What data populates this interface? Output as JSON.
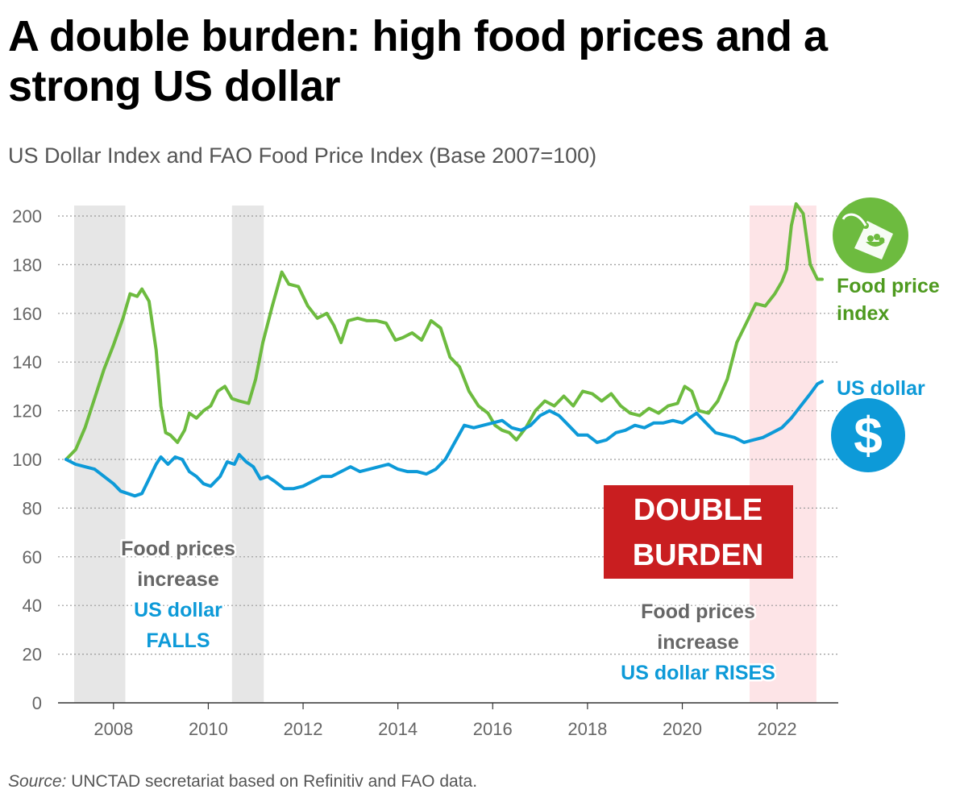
{
  "header": {
    "title": "A double burden: high food prices and a strong US dollar",
    "subtitle": "US Dollar Index and FAO Food Price Index (Base 2007=100)"
  },
  "footer": {
    "source_label": "Source:",
    "source_text": " UNCTAD secretariat based on Refinitiv and FAO data."
  },
  "colors": {
    "food": "#6dbb3f",
    "dollar": "#0d9ad8",
    "burden": "#c91e20",
    "gray_band": "#e6e6e6",
    "pink_band": "#fde4e7",
    "annotation_gray": "#666666"
  },
  "icons": {
    "food": "food-price-tag-icon",
    "dollar": "dollar-coin-icon"
  },
  "chart_data": {
    "type": "line",
    "title": "A double burden: high food prices and a strong US dollar",
    "subtitle": "US Dollar Index and FAO Food Price Index (Base 2007=100)",
    "xlabel": "",
    "ylabel": "",
    "xlim": [
      2007,
      2023
    ],
    "ylim": [
      0,
      205
    ],
    "yticks": [
      0,
      20,
      40,
      60,
      80,
      100,
      120,
      140,
      160,
      180,
      200
    ],
    "xticks": [
      2008,
      2010,
      2012,
      2014,
      2016,
      2018,
      2020,
      2022
    ],
    "grid": "horizontal-dotted",
    "shaded_periods": [
      {
        "from": 2007.17,
        "to": 2008.25,
        "style": "gray"
      },
      {
        "from": 2010.5,
        "to": 2011.17,
        "style": "gray"
      },
      {
        "from": 2021.42,
        "to": 2022.83,
        "style": "pink"
      }
    ],
    "series": [
      {
        "name": "Food price index",
        "label_lines": [
          "Food price",
          "index"
        ],
        "color": "#6dbb3f",
        "points": [
          [
            2007.0,
            100
          ],
          [
            2007.2,
            104
          ],
          [
            2007.4,
            113
          ],
          [
            2007.6,
            125
          ],
          [
            2007.8,
            137
          ],
          [
            2008.0,
            147
          ],
          [
            2008.2,
            158
          ],
          [
            2008.35,
            168
          ],
          [
            2008.5,
            167
          ],
          [
            2008.6,
            170
          ],
          [
            2008.75,
            165
          ],
          [
            2008.9,
            145
          ],
          [
            2009.0,
            122
          ],
          [
            2009.1,
            111
          ],
          [
            2009.2,
            110
          ],
          [
            2009.35,
            107
          ],
          [
            2009.5,
            112
          ],
          [
            2009.6,
            119
          ],
          [
            2009.75,
            117
          ],
          [
            2009.9,
            120
          ],
          [
            2010.05,
            122
          ],
          [
            2010.2,
            128
          ],
          [
            2010.35,
            130
          ],
          [
            2010.5,
            125
          ],
          [
            2010.65,
            124
          ],
          [
            2010.85,
            123
          ],
          [
            2011.0,
            133
          ],
          [
            2011.15,
            148
          ],
          [
            2011.35,
            163
          ],
          [
            2011.55,
            177
          ],
          [
            2011.7,
            172
          ],
          [
            2011.9,
            171
          ],
          [
            2012.1,
            163
          ],
          [
            2012.3,
            158
          ],
          [
            2012.5,
            160
          ],
          [
            2012.65,
            155
          ],
          [
            2012.8,
            148
          ],
          [
            2012.95,
            157
          ],
          [
            2013.15,
            158
          ],
          [
            2013.35,
            157
          ],
          [
            2013.55,
            157
          ],
          [
            2013.75,
            156
          ],
          [
            2013.95,
            149
          ],
          [
            2014.1,
            150
          ],
          [
            2014.3,
            152
          ],
          [
            2014.5,
            149
          ],
          [
            2014.7,
            157
          ],
          [
            2014.9,
            154
          ],
          [
            2015.1,
            142
          ],
          [
            2015.3,
            138
          ],
          [
            2015.5,
            128
          ],
          [
            2015.7,
            122
          ],
          [
            2015.9,
            119
          ],
          [
            2016.05,
            114
          ],
          [
            2016.2,
            112
          ],
          [
            2016.35,
            111
          ],
          [
            2016.5,
            108
          ],
          [
            2016.7,
            113
          ],
          [
            2016.9,
            120
          ],
          [
            2017.1,
            124
          ],
          [
            2017.3,
            122
          ],
          [
            2017.5,
            126
          ],
          [
            2017.7,
            122
          ],
          [
            2017.9,
            128
          ],
          [
            2018.1,
            127
          ],
          [
            2018.3,
            124
          ],
          [
            2018.5,
            127
          ],
          [
            2018.7,
            122
          ],
          [
            2018.9,
            119
          ],
          [
            2019.1,
            118
          ],
          [
            2019.3,
            121
          ],
          [
            2019.5,
            119
          ],
          [
            2019.7,
            122
          ],
          [
            2019.9,
            123
          ],
          [
            2020.05,
            130
          ],
          [
            2020.2,
            128
          ],
          [
            2020.35,
            120
          ],
          [
            2020.55,
            119
          ],
          [
            2020.75,
            124
          ],
          [
            2020.95,
            133
          ],
          [
            2021.15,
            148
          ],
          [
            2021.35,
            156
          ],
          [
            2021.55,
            164
          ],
          [
            2021.75,
            163
          ],
          [
            2021.95,
            168
          ],
          [
            2022.1,
            173
          ],
          [
            2022.2,
            178
          ],
          [
            2022.3,
            196
          ],
          [
            2022.4,
            205
          ],
          [
            2022.55,
            201
          ],
          [
            2022.7,
            180
          ],
          [
            2022.85,
            174
          ],
          [
            2022.95,
            174
          ]
        ]
      },
      {
        "name": "US dollar",
        "label_lines": [
          "US dollar"
        ],
        "color": "#0d9ad8",
        "points": [
          [
            2007.0,
            100
          ],
          [
            2007.2,
            98
          ],
          [
            2007.4,
            97
          ],
          [
            2007.6,
            96
          ],
          [
            2007.8,
            93
          ],
          [
            2008.0,
            90
          ],
          [
            2008.15,
            87
          ],
          [
            2008.3,
            86
          ],
          [
            2008.45,
            85
          ],
          [
            2008.6,
            86
          ],
          [
            2008.75,
            92
          ],
          [
            2008.9,
            98
          ],
          [
            2009.0,
            101
          ],
          [
            2009.15,
            98
          ],
          [
            2009.3,
            101
          ],
          [
            2009.45,
            100
          ],
          [
            2009.6,
            95
          ],
          [
            2009.75,
            93
          ],
          [
            2009.9,
            90
          ],
          [
            2010.05,
            89
          ],
          [
            2010.25,
            93
          ],
          [
            2010.4,
            99
          ],
          [
            2010.55,
            98
          ],
          [
            2010.65,
            102
          ],
          [
            2010.8,
            99
          ],
          [
            2010.95,
            97
          ],
          [
            2011.1,
            92
          ],
          [
            2011.25,
            93
          ],
          [
            2011.4,
            91
          ],
          [
            2011.6,
            88
          ],
          [
            2011.8,
            88
          ],
          [
            2012.0,
            89
          ],
          [
            2012.2,
            91
          ],
          [
            2012.4,
            93
          ],
          [
            2012.6,
            93
          ],
          [
            2012.8,
            95
          ],
          [
            2013.0,
            97
          ],
          [
            2013.2,
            95
          ],
          [
            2013.4,
            96
          ],
          [
            2013.6,
            97
          ],
          [
            2013.8,
            98
          ],
          [
            2014.0,
            96
          ],
          [
            2014.2,
            95
          ],
          [
            2014.4,
            95
          ],
          [
            2014.6,
            94
          ],
          [
            2014.8,
            96
          ],
          [
            2015.0,
            100
          ],
          [
            2015.2,
            107
          ],
          [
            2015.4,
            114
          ],
          [
            2015.6,
            113
          ],
          [
            2015.8,
            114
          ],
          [
            2016.0,
            115
          ],
          [
            2016.2,
            116
          ],
          [
            2016.4,
            113
          ],
          [
            2016.6,
            112
          ],
          [
            2016.8,
            114
          ],
          [
            2017.0,
            118
          ],
          [
            2017.2,
            120
          ],
          [
            2017.4,
            118
          ],
          [
            2017.6,
            114
          ],
          [
            2017.8,
            110
          ],
          [
            2018.0,
            110
          ],
          [
            2018.2,
            107
          ],
          [
            2018.4,
            108
          ],
          [
            2018.6,
            111
          ],
          [
            2018.8,
            112
          ],
          [
            2019.0,
            114
          ],
          [
            2019.2,
            113
          ],
          [
            2019.4,
            115
          ],
          [
            2019.6,
            115
          ],
          [
            2019.8,
            116
          ],
          [
            2020.0,
            115
          ],
          [
            2020.15,
            117
          ],
          [
            2020.3,
            119
          ],
          [
            2020.5,
            115
          ],
          [
            2020.7,
            111
          ],
          [
            2020.9,
            110
          ],
          [
            2021.1,
            109
          ],
          [
            2021.3,
            107
          ],
          [
            2021.5,
            108
          ],
          [
            2021.7,
            109
          ],
          [
            2021.9,
            111
          ],
          [
            2022.1,
            113
          ],
          [
            2022.3,
            117
          ],
          [
            2022.5,
            122
          ],
          [
            2022.7,
            127
          ],
          [
            2022.85,
            131
          ],
          [
            2022.95,
            132
          ]
        ]
      }
    ],
    "annotations": {
      "left": {
        "lines": [
          "Food prices",
          "increase",
          "US dollar",
          "FALLS"
        ]
      },
      "burden_box": {
        "lines": [
          "DOUBLE",
          "BURDEN"
        ]
      },
      "right": {
        "lines": [
          "Food prices",
          "increase",
          "US dollar RISES"
        ]
      }
    }
  }
}
